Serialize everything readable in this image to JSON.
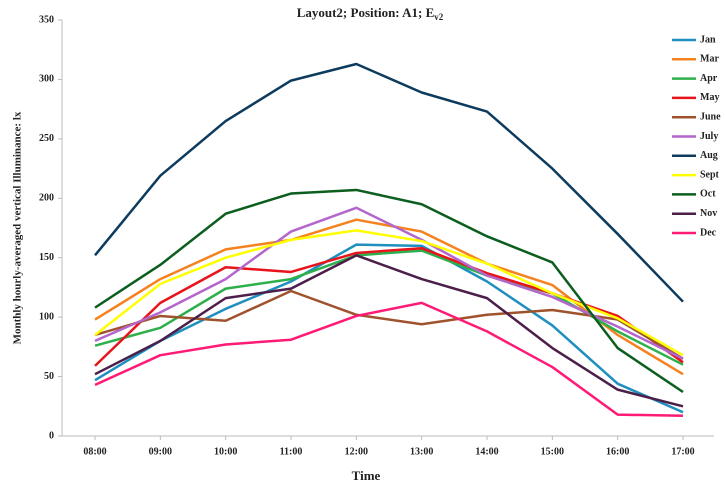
{
  "chart_data": {
    "type": "line",
    "title": "Layout2; Position: A1; E",
    "title_subscript": "v2",
    "x_label": "Time",
    "y_label": "Monthly hourly-averaged vertical Illuminance: lx",
    "categories": [
      "08:00",
      "09:00",
      "10:00",
      "11:00",
      "12:00",
      "13:00",
      "14:00",
      "15:00",
      "16:00",
      "17:00"
    ],
    "ylim": [
      0,
      350
    ],
    "yticks": [
      0,
      50,
      100,
      150,
      200,
      250,
      300,
      350
    ],
    "grid": false,
    "legend": "upper right",
    "series": [
      {
        "name": "Jan",
        "color": "#1f8fbf",
        "values": [
          47,
          80,
          107,
          130,
          161,
          160,
          130,
          93,
          44,
          20
        ]
      },
      {
        "name": "Mar",
        "color": "#f5821f",
        "values": [
          98,
          132,
          157,
          165,
          182,
          172,
          145,
          127,
          85,
          52
        ]
      },
      {
        "name": "Apr",
        "color": "#2db04b",
        "values": [
          76,
          91,
          124,
          132,
          152,
          156,
          135,
          120,
          88,
          60
        ]
      },
      {
        "name": "May",
        "color": "#e8141c",
        "values": [
          59,
          112,
          142,
          138,
          154,
          158,
          137,
          120,
          101,
          62
        ]
      },
      {
        "name": "June",
        "color": "#a0522d",
        "values": [
          85,
          101,
          97,
          122,
          102,
          94,
          102,
          106,
          98,
          65
        ]
      },
      {
        "name": "July",
        "color": "#b366cc",
        "values": [
          80,
          104,
          132,
          172,
          192,
          165,
          135,
          117,
          92,
          65
        ]
      },
      {
        "name": "Aug",
        "color": "#0d3b5e",
        "values": [
          152,
          219,
          265,
          299,
          313,
          289,
          273,
          225,
          170,
          113
        ]
      },
      {
        "name": "Sept",
        "color": "#ffff00",
        "values": [
          85,
          128,
          150,
          165,
          173,
          164,
          145,
          120,
          99,
          68
        ]
      },
      {
        "name": "Oct",
        "color": "#0b5e1e",
        "values": [
          108,
          144,
          187,
          204,
          207,
          195,
          168,
          146,
          74,
          37
        ]
      },
      {
        "name": "Nov",
        "color": "#4b1f4a",
        "values": [
          52,
          80,
          116,
          124,
          152,
          132,
          116,
          74,
          39,
          25
        ]
      },
      {
        "name": "Dec",
        "color": "#ff1a75",
        "values": [
          43,
          68,
          77,
          81,
          101,
          112,
          88,
          58,
          18,
          17
        ]
      }
    ]
  }
}
